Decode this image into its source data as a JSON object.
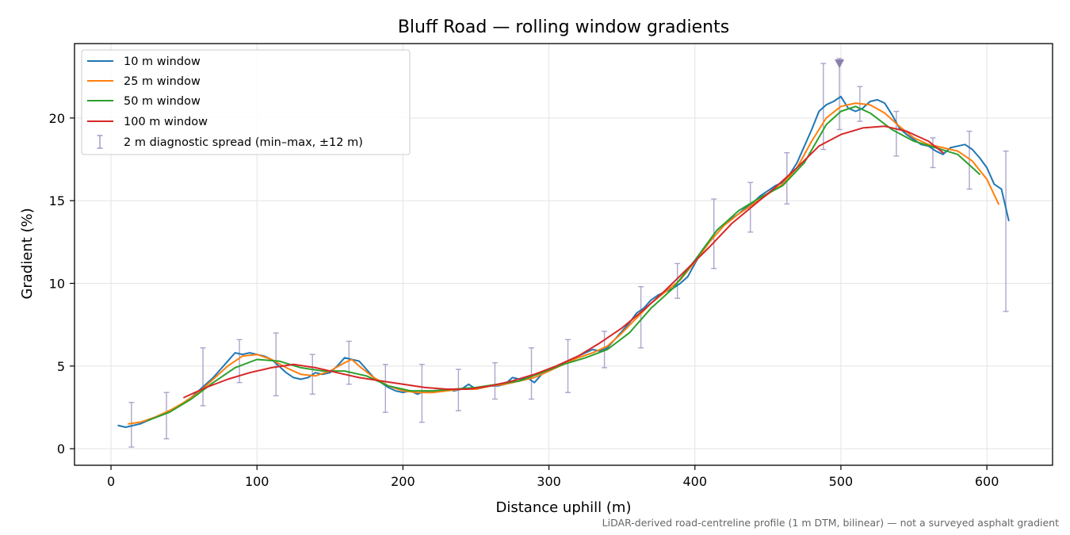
{
  "chart_data": {
    "type": "line",
    "title": "Bluff Road — rolling window gradients",
    "xlabel": "Distance uphill (m)",
    "ylabel": "Gradient (%)",
    "xlim": [
      -25,
      645
    ],
    "ylim": [
      -1,
      24.5
    ],
    "xticks": [
      0,
      100,
      200,
      300,
      400,
      500,
      600
    ],
    "yticks": [
      0,
      5,
      10,
      15,
      20
    ],
    "grid": true,
    "legend_position": "top-left",
    "footnote": "LiDAR-derived road-centreline profile (1 m DTM, bilinear) — not a surveyed asphalt gradient",
    "series": [
      {
        "name": "10 m window",
        "color": "#1f77b4",
        "x": [
          5,
          10,
          15,
          20,
          25,
          30,
          35,
          40,
          45,
          50,
          55,
          60,
          65,
          70,
          75,
          80,
          85,
          90,
          95,
          100,
          105,
          110,
          115,
          120,
          125,
          130,
          135,
          140,
          145,
          150,
          155,
          160,
          165,
          170,
          175,
          180,
          185,
          190,
          195,
          200,
          205,
          210,
          215,
          220,
          225,
          230,
          235,
          240,
          245,
          250,
          255,
          260,
          265,
          270,
          275,
          280,
          285,
          290,
          295,
          300,
          305,
          310,
          315,
          320,
          325,
          330,
          335,
          340,
          345,
          350,
          355,
          360,
          365,
          370,
          375,
          380,
          385,
          390,
          395,
          400,
          405,
          410,
          415,
          420,
          425,
          430,
          435,
          440,
          445,
          450,
          455,
          460,
          465,
          470,
          475,
          480,
          485,
          490,
          495,
          500,
          505,
          510,
          515,
          520,
          525,
          530,
          535,
          540,
          545,
          550,
          555,
          560,
          565,
          570,
          575,
          580,
          585,
          590,
          595,
          600,
          605,
          610,
          615
        ],
        "values": [
          1.4,
          1.3,
          1.4,
          1.5,
          1.7,
          1.9,
          2.1,
          2.3,
          2.5,
          2.8,
          3.1,
          3.5,
          3.9,
          4.3,
          4.8,
          5.3,
          5.8,
          5.7,
          5.8,
          5.7,
          5.6,
          5.4,
          5.0,
          4.6,
          4.3,
          4.2,
          4.3,
          4.6,
          4.5,
          4.6,
          5.0,
          5.5,
          5.4,
          5.3,
          4.8,
          4.3,
          4.0,
          3.7,
          3.5,
          3.4,
          3.5,
          3.3,
          3.5,
          3.4,
          3.5,
          3.6,
          3.5,
          3.6,
          3.9,
          3.6,
          3.7,
          3.8,
          3.8,
          3.9,
          4.3,
          4.2,
          4.3,
          4.0,
          4.5,
          4.7,
          4.9,
          5.2,
          5.4,
          5.6,
          5.8,
          6.0,
          5.9,
          6.1,
          6.6,
          7.1,
          7.6,
          8.2,
          8.5,
          9.0,
          9.3,
          9.5,
          9.7,
          10.0,
          10.4,
          11.2,
          12.0,
          12.6,
          13.2,
          13.6,
          13.9,
          14.2,
          14.6,
          14.9,
          15.3,
          15.6,
          15.9,
          16.1,
          16.6,
          17.3,
          18.3,
          19.3,
          20.4,
          20.8,
          21.0,
          21.3,
          20.6,
          20.4,
          20.6,
          21.0,
          21.1,
          20.9,
          20.2,
          19.4,
          19.0,
          18.7,
          18.4,
          18.3,
          18.0,
          17.8,
          18.2,
          18.3,
          18.4,
          18.1,
          17.6,
          17.0,
          16.0,
          15.7,
          13.8
        ]
      },
      {
        "name": "25 m window",
        "color": "#ff7f0e",
        "x": [
          12,
          20,
          30,
          40,
          50,
          60,
          70,
          80,
          90,
          100,
          110,
          120,
          130,
          140,
          150,
          160,
          165,
          170,
          180,
          190,
          200,
          210,
          220,
          230,
          240,
          250,
          260,
          270,
          280,
          290,
          300,
          310,
          320,
          330,
          340,
          350,
          360,
          370,
          380,
          390,
          400,
          410,
          420,
          430,
          440,
          450,
          460,
          470,
          480,
          490,
          500,
          510,
          520,
          530,
          540,
          550,
          560,
          570,
          580,
          590,
          600,
          608
        ],
        "values": [
          1.5,
          1.6,
          1.9,
          2.3,
          2.8,
          3.4,
          4.2,
          5.0,
          5.6,
          5.7,
          5.4,
          4.9,
          4.5,
          4.4,
          4.7,
          5.2,
          5.4,
          5.0,
          4.3,
          3.8,
          3.5,
          3.4,
          3.4,
          3.5,
          3.6,
          3.6,
          3.8,
          3.9,
          4.1,
          4.3,
          4.7,
          5.1,
          5.5,
          5.8,
          6.2,
          7.0,
          7.9,
          8.8,
          9.5,
          10.2,
          11.3,
          12.5,
          13.5,
          14.2,
          14.8,
          15.4,
          16.0,
          17.0,
          18.6,
          20.0,
          20.7,
          20.9,
          20.8,
          20.3,
          19.5,
          18.8,
          18.4,
          18.2,
          18.0,
          17.4,
          16.3,
          14.8
        ]
      },
      {
        "name": "50 m window",
        "color": "#2ca02c",
        "x": [
          25,
          40,
          55,
          70,
          85,
          100,
          115,
          130,
          145,
          160,
          175,
          190,
          205,
          220,
          235,
          250,
          265,
          280,
          295,
          310,
          325,
          340,
          355,
          370,
          385,
          400,
          415,
          430,
          445,
          460,
          475,
          490,
          500,
          510,
          520,
          535,
          550,
          565,
          580,
          595
        ],
        "values": [
          1.7,
          2.2,
          3.0,
          4.0,
          4.9,
          5.4,
          5.3,
          4.9,
          4.7,
          4.7,
          4.4,
          3.8,
          3.5,
          3.5,
          3.6,
          3.7,
          3.9,
          4.1,
          4.6,
          5.1,
          5.5,
          6.0,
          7.0,
          8.5,
          9.7,
          11.4,
          13.2,
          14.4,
          15.2,
          15.9,
          17.3,
          19.6,
          20.4,
          20.7,
          20.3,
          19.3,
          18.6,
          18.2,
          17.8,
          16.6
        ]
      },
      {
        "name": "100 m window",
        "color": "#d62728",
        "x": [
          50,
          65,
          80,
          95,
          110,
          125,
          140,
          155,
          170,
          185,
          200,
          215,
          230,
          245,
          260,
          275,
          290,
          305,
          320,
          335,
          350,
          365,
          380,
          395,
          410,
          425,
          440,
          455,
          470,
          485,
          500,
          515,
          530,
          545,
          560,
          570
        ],
        "values": [
          3.1,
          3.7,
          4.2,
          4.6,
          4.9,
          5.1,
          4.9,
          4.6,
          4.3,
          4.1,
          3.9,
          3.7,
          3.6,
          3.6,
          3.8,
          4.1,
          4.5,
          5.0,
          5.6,
          6.4,
          7.3,
          8.4,
          9.6,
          10.9,
          12.2,
          13.6,
          14.7,
          15.8,
          17.0,
          18.3,
          19.0,
          19.4,
          19.5,
          19.2,
          18.6,
          17.9
        ]
      }
    ],
    "errorbars": {
      "name": "2 m diagnostic spread (min–max, ±12 m)",
      "color": "#9e97c2",
      "x": [
        14,
        38,
        63,
        88,
        113,
        138,
        163,
        188,
        213,
        238,
        263,
        288,
        313,
        338,
        363,
        388,
        413,
        438,
        463,
        488,
        499,
        513,
        538,
        563,
        588,
        613
      ],
      "low": [
        0.1,
        0.6,
        2.6,
        4.0,
        3.2,
        3.3,
        3.9,
        2.2,
        1.6,
        2.3,
        3.0,
        3.0,
        3.4,
        4.9,
        6.1,
        9.1,
        10.9,
        13.1,
        14.8,
        18.1,
        19.3,
        19.8,
        17.7,
        17.0,
        15.7,
        8.3
      ],
      "high": [
        2.8,
        3.4,
        6.1,
        6.6,
        7.0,
        5.7,
        6.5,
        5.1,
        5.1,
        4.8,
        5.2,
        6.1,
        6.6,
        7.1,
        9.8,
        11.2,
        15.1,
        16.1,
        17.9,
        23.3,
        23.6,
        21.9,
        20.4,
        18.8,
        19.2,
        18.0
      ]
    },
    "marker": {
      "x": 499,
      "y": 23.3,
      "symbol": "triangle-down",
      "color": "#8b7fad"
    }
  }
}
